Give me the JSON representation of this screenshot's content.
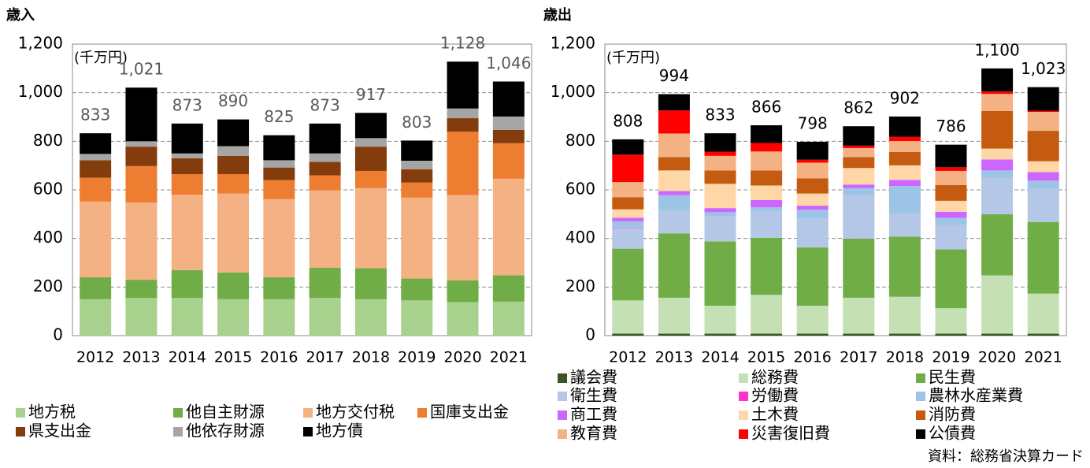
{
  "chart_data": [
    {
      "type": "bar",
      "stacked": true,
      "title": "歳入",
      "unit_label": "(千万円)",
      "categories": [
        "2012",
        "2013",
        "2014",
        "2015",
        "2016",
        "2017",
        "2018",
        "2019",
        "2020",
        "2021"
      ],
      "ylim": [
        0,
        1200
      ],
      "yticks": [
        0,
        200,
        400,
        600,
        800,
        {
          "value": 1000,
          "label": "1,000"
        },
        {
          "value": 1200,
          "label": "1,200"
        }
      ],
      "grid": true,
      "total_color": "#595959",
      "totals": [
        833,
        1021,
        873,
        890,
        825,
        873,
        917,
        803,
        1128,
        1046
      ],
      "total_labels": [
        "833",
        "1,021",
        "873",
        "890",
        "825",
        "873",
        "917",
        "803",
        "1,128",
        "1,046"
      ],
      "series": [
        {
          "name": "地方税",
          "color": "#a9d18e",
          "values": [
            150,
            155,
            155,
            150,
            150,
            155,
            150,
            145,
            138,
            140
          ]
        },
        {
          "name": "他自主財源",
          "color": "#70ad47",
          "values": [
            90,
            75,
            115,
            110,
            90,
            125,
            128,
            90,
            90,
            108
          ]
        },
        {
          "name": "地方交付税",
          "color": "#f4b183",
          "values": [
            312,
            318,
            310,
            325,
            322,
            318,
            330,
            333,
            350,
            398
          ]
        },
        {
          "name": "国庫支出金",
          "color": "#ed7d31",
          "values": [
            98,
            150,
            85,
            80,
            78,
            62,
            70,
            62,
            262,
            146
          ]
        },
        {
          "name": "県支出金",
          "color": "#843c0c",
          "values": [
            72,
            80,
            65,
            75,
            52,
            55,
            100,
            55,
            55,
            55
          ]
        },
        {
          "name": "他依存財源",
          "color": "#a5a5a5",
          "values": [
            26,
            22,
            20,
            40,
            30,
            35,
            35,
            35,
            40,
            55
          ]
        },
        {
          "name": "地方債",
          "color": "#000000",
          "values": [
            85,
            221,
            123,
            110,
            103,
            123,
            104,
            83,
            193,
            144
          ]
        }
      ]
    },
    {
      "type": "bar",
      "stacked": true,
      "title": "歳出",
      "unit_label": "(千万円)",
      "categories": [
        "2012",
        "2013",
        "2014",
        "2015",
        "2016",
        "2017",
        "2018",
        "2019",
        "2020",
        "2021"
      ],
      "ylim": [
        0,
        1200
      ],
      "yticks": [
        0,
        200,
        400,
        600,
        800,
        {
          "value": 1000,
          "label": "1,000"
        },
        {
          "value": 1200,
          "label": "1,200"
        }
      ],
      "grid": true,
      "total_color": "#000000",
      "totals": [
        808,
        994,
        833,
        866,
        798,
        862,
        902,
        786,
        1100,
        1023
      ],
      "total_labels": [
        "808",
        "994",
        "833",
        "866",
        "798",
        "862",
        "902",
        "786",
        "1,100",
        "1,023"
      ],
      "series": [
        {
          "name": "議会費",
          "color": "#375623",
          "values": [
            8,
            8,
            8,
            8,
            8,
            8,
            8,
            8,
            8,
            8
          ]
        },
        {
          "name": "総務費",
          "color": "#c5e0b4",
          "values": [
            137,
            148,
            115,
            160,
            115,
            148,
            152,
            105,
            240,
            165
          ]
        },
        {
          "name": "民生費",
          "color": "#70ad47",
          "values": [
            213,
            265,
            265,
            235,
            240,
            243,
            248,
            242,
            252,
            295
          ]
        },
        {
          "name": "衛生費",
          "color": "#b4c7e7",
          "values": [
            85,
            95,
            105,
            110,
            120,
            180,
            95,
            100,
            150,
            140
          ]
        },
        {
          "name": "労働費",
          "color": "#ff33cc",
          "values": [
            2,
            0,
            0,
            0,
            0,
            0,
            0,
            0,
            0,
            0
          ]
        },
        {
          "name": "農林水産業費",
          "color": "#9dc3e6",
          "values": [
            25,
            62,
            15,
            15,
            35,
            28,
            113,
            30,
            30,
            30
          ]
        },
        {
          "name": "商工費",
          "color": "#cc66ff",
          "values": [
            15,
            17,
            17,
            30,
            17,
            15,
            25,
            25,
            45,
            35
          ]
        },
        {
          "name": "土木費",
          "color": "#ffd7a6",
          "values": [
            35,
            85,
            100,
            60,
            50,
            68,
            60,
            45,
            45,
            45
          ]
        },
        {
          "name": "消防費",
          "color": "#c55a11",
          "values": [
            50,
            55,
            55,
            62,
            62,
            45,
            55,
            65,
            155,
            125
          ]
        },
        {
          "name": "教育費",
          "color": "#f4b183",
          "values": [
            62,
            97,
            60,
            78,
            65,
            37,
            45,
            58,
            70,
            78
          ]
        },
        {
          "name": "災害復旧費",
          "color": "#ff0000",
          "values": [
            113,
            95,
            17,
            35,
            12,
            10,
            17,
            15,
            10,
            5
          ]
        },
        {
          "name": "公債費",
          "color": "#000000",
          "values": [
            63,
            67,
            76,
            73,
            74,
            80,
            84,
            93,
            95,
            97
          ]
        }
      ]
    }
  ],
  "source": "資料：総務省決算カード"
}
